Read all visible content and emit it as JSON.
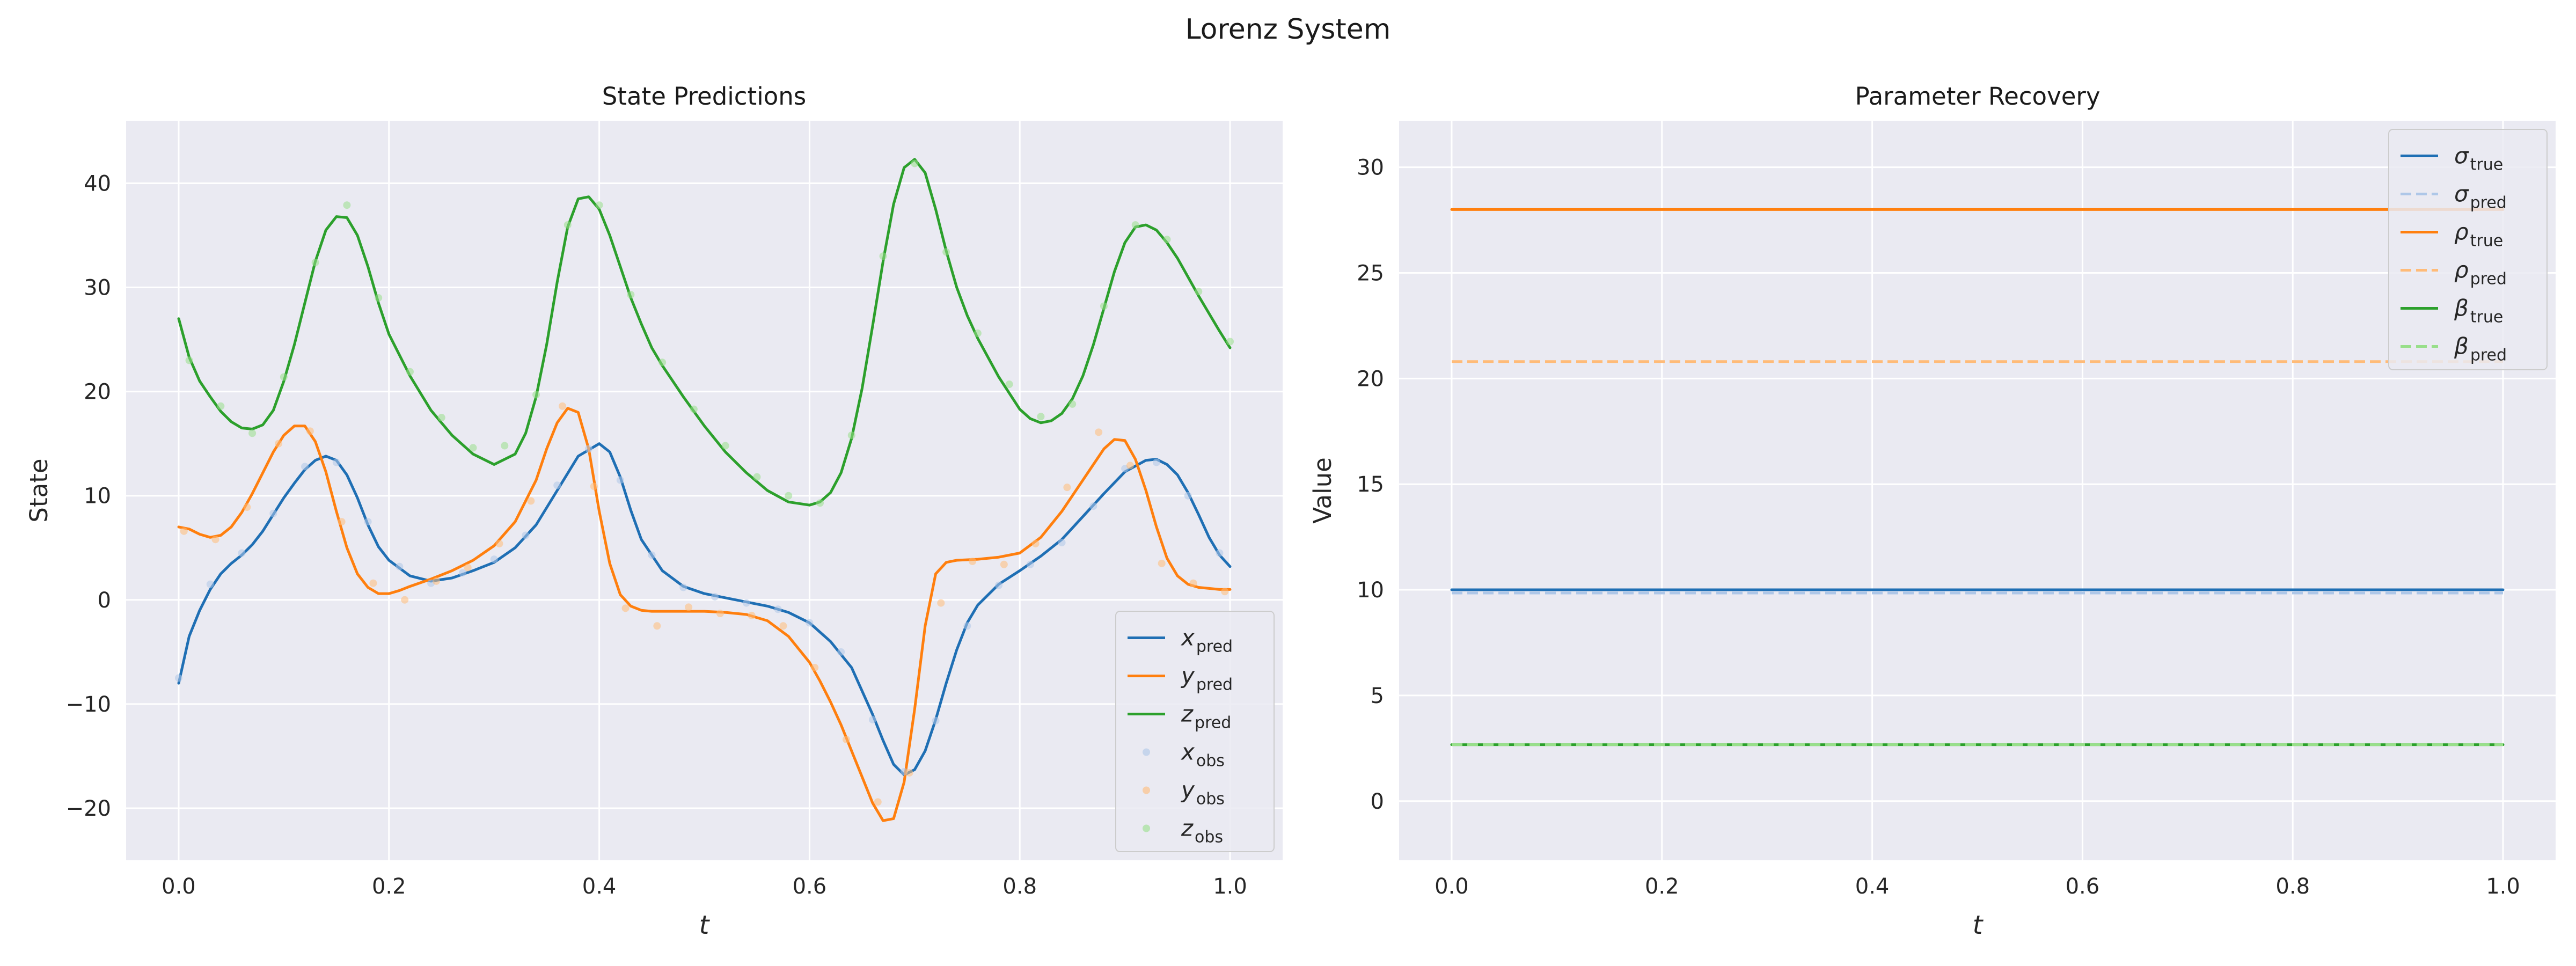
{
  "figure_title": "Lorenz System",
  "chart_data": [
    {
      "type": "line",
      "title": "State Predictions",
      "xlabel": "t",
      "ylabel": "State",
      "xlim": [
        -0.05,
        1.05
      ],
      "ylim": [
        -25,
        46
      ],
      "xticks": [
        0.0,
        0.2,
        0.4,
        0.6,
        0.8,
        1.0
      ],
      "yticks": [
        -20,
        -10,
        0,
        10,
        20,
        30,
        40
      ],
      "grid": true,
      "legend_position": "bottom-right",
      "series": [
        {
          "name": "x_pred",
          "label_main": "x",
          "label_sub": "pred",
          "color": "#1f6fb4",
          "style": "line",
          "x": [
            0.0,
            0.01,
            0.02,
            0.03,
            0.04,
            0.05,
            0.06,
            0.07,
            0.08,
            0.09,
            0.1,
            0.11,
            0.12,
            0.13,
            0.14,
            0.15,
            0.16,
            0.17,
            0.18,
            0.19,
            0.2,
            0.22,
            0.24,
            0.26,
            0.28,
            0.3,
            0.32,
            0.34,
            0.36,
            0.38,
            0.4,
            0.41,
            0.42,
            0.43,
            0.44,
            0.46,
            0.48,
            0.5,
            0.52,
            0.54,
            0.56,
            0.58,
            0.6,
            0.62,
            0.64,
            0.66,
            0.67,
            0.68,
            0.69,
            0.7,
            0.71,
            0.72,
            0.73,
            0.74,
            0.75,
            0.76,
            0.78,
            0.8,
            0.82,
            0.84,
            0.86,
            0.88,
            0.9,
            0.92,
            0.93,
            0.94,
            0.95,
            0.96,
            0.97,
            0.98,
            0.99,
            1.0
          ],
          "y": [
            -8,
            -3.5,
            -1,
            1,
            2.5,
            3.5,
            4.3,
            5.3,
            6.6,
            8.2,
            9.8,
            11.2,
            12.5,
            13.4,
            13.8,
            13.4,
            12,
            9.8,
            7.2,
            5.1,
            3.8,
            2.3,
            1.8,
            2.1,
            2.8,
            3.6,
            5,
            7.2,
            10.5,
            13.8,
            15,
            14.2,
            11.8,
            8.6,
            5.8,
            2.8,
            1.3,
            0.6,
            0.2,
            -0.2,
            -0.6,
            -1.2,
            -2.2,
            -4,
            -6.5,
            -11,
            -13.5,
            -15.8,
            -16.8,
            -16.3,
            -14.5,
            -11.5,
            -8,
            -4.8,
            -2.2,
            -0.5,
            1.5,
            2.8,
            4.2,
            5.8,
            8,
            10.2,
            12.3,
            13.4,
            13.5,
            13,
            12,
            10.3,
            8.2,
            6,
            4.3,
            3.2
          ]
        },
        {
          "name": "y_pred",
          "label_main": "y",
          "label_sub": "pred",
          "color": "#ff7f0e",
          "style": "line",
          "x": [
            0.0,
            0.01,
            0.02,
            0.03,
            0.04,
            0.05,
            0.06,
            0.07,
            0.08,
            0.09,
            0.1,
            0.11,
            0.12,
            0.13,
            0.14,
            0.15,
            0.16,
            0.17,
            0.18,
            0.19,
            0.2,
            0.21,
            0.22,
            0.24,
            0.26,
            0.28,
            0.3,
            0.32,
            0.34,
            0.35,
            0.36,
            0.37,
            0.38,
            0.39,
            0.4,
            0.41,
            0.42,
            0.43,
            0.44,
            0.45,
            0.46,
            0.48,
            0.5,
            0.52,
            0.54,
            0.56,
            0.58,
            0.6,
            0.61,
            0.62,
            0.63,
            0.64,
            0.65,
            0.66,
            0.67,
            0.68,
            0.69,
            0.7,
            0.71,
            0.72,
            0.73,
            0.74,
            0.76,
            0.78,
            0.8,
            0.82,
            0.84,
            0.86,
            0.88,
            0.89,
            0.9,
            0.91,
            0.92,
            0.93,
            0.94,
            0.95,
            0.96,
            0.97,
            0.98,
            0.99,
            1.0
          ],
          "y": [
            7,
            6.8,
            6.3,
            6,
            6.2,
            7,
            8.4,
            10.2,
            12.2,
            14.2,
            15.8,
            16.7,
            16.7,
            15.2,
            12.3,
            8.5,
            5,
            2.5,
            1.2,
            0.6,
            0.6,
            0.9,
            1.3,
            2,
            2.8,
            3.8,
            5.2,
            7.5,
            11.5,
            14.5,
            17,
            18.4,
            18,
            14.5,
            8.5,
            3.5,
            0.5,
            -0.6,
            -1,
            -1.1,
            -1.1,
            -1.1,
            -1.1,
            -1.2,
            -1.4,
            -2,
            -3.5,
            -6,
            -7.8,
            -9.8,
            -12,
            -14.5,
            -17,
            -19.5,
            -21.2,
            -21,
            -17.5,
            -10.5,
            -2.5,
            2.5,
            3.6,
            3.8,
            3.9,
            4.1,
            4.5,
            6,
            8.5,
            11.5,
            14.5,
            15.4,
            15.3,
            13.5,
            10.5,
            7,
            4,
            2.3,
            1.5,
            1.2,
            1.1,
            1,
            1
          ]
        },
        {
          "name": "z_pred",
          "label_main": "z",
          "label_sub": "pred",
          "color": "#2ca02c",
          "style": "line",
          "x": [
            0.0,
            0.01,
            0.02,
            0.03,
            0.04,
            0.05,
            0.06,
            0.07,
            0.08,
            0.09,
            0.1,
            0.11,
            0.12,
            0.13,
            0.14,
            0.15,
            0.16,
            0.17,
            0.18,
            0.19,
            0.2,
            0.22,
            0.24,
            0.26,
            0.28,
            0.3,
            0.32,
            0.33,
            0.34,
            0.35,
            0.36,
            0.37,
            0.38,
            0.39,
            0.4,
            0.41,
            0.42,
            0.43,
            0.44,
            0.45,
            0.46,
            0.48,
            0.5,
            0.52,
            0.54,
            0.56,
            0.58,
            0.6,
            0.61,
            0.62,
            0.63,
            0.64,
            0.65,
            0.66,
            0.67,
            0.68,
            0.69,
            0.7,
            0.71,
            0.72,
            0.73,
            0.74,
            0.75,
            0.76,
            0.78,
            0.8,
            0.81,
            0.82,
            0.83,
            0.84,
            0.85,
            0.86,
            0.87,
            0.88,
            0.89,
            0.9,
            0.91,
            0.92,
            0.93,
            0.94,
            0.95,
            0.96,
            0.97,
            0.98,
            0.99,
            1.0
          ],
          "y": [
            27,
            23.3,
            21,
            19.5,
            18.1,
            17.1,
            16.5,
            16.4,
            16.8,
            18.2,
            21,
            24.5,
            28.5,
            32.5,
            35.5,
            36.8,
            36.7,
            35,
            32,
            28.5,
            25.5,
            21.5,
            18.2,
            15.8,
            14,
            13,
            14,
            16,
            19.5,
            24.5,
            30.5,
            35.8,
            38.5,
            38.7,
            37.5,
            35,
            32,
            29,
            26.5,
            24.2,
            22.5,
            19.5,
            16.7,
            14.2,
            12.2,
            10.5,
            9.4,
            9.1,
            9.4,
            10.3,
            12.2,
            15.5,
            20.3,
            26.3,
            32.5,
            38,
            41.5,
            42.3,
            41,
            37.5,
            33.5,
            30,
            27.3,
            25.1,
            21.4,
            18.3,
            17.4,
            17,
            17.2,
            17.9,
            19.3,
            21.5,
            24.5,
            28,
            31.5,
            34.3,
            35.8,
            36,
            35.5,
            34.3,
            32.8,
            31,
            29.2,
            27.5,
            25.8,
            24.2
          ]
        },
        {
          "name": "x_obs",
          "label_main": "x",
          "label_sub": "obs",
          "color": "#aec7e8",
          "style": "scatter",
          "x": [
            0.0,
            0.03,
            0.06,
            0.09,
            0.12,
            0.15,
            0.18,
            0.21,
            0.24,
            0.27,
            0.3,
            0.33,
            0.36,
            0.39,
            0.42,
            0.45,
            0.48,
            0.51,
            0.54,
            0.57,
            0.6,
            0.63,
            0.66,
            0.69,
            0.72,
            0.75,
            0.78,
            0.81,
            0.84,
            0.87,
            0.9,
            0.93,
            0.96,
            0.99
          ],
          "y": [
            -7.5,
            1.5,
            4.5,
            8.3,
            12.8,
            13.2,
            7.5,
            3.2,
            1.6,
            2.6,
            3.9,
            6.2,
            11,
            14.5,
            11.5,
            4.3,
            1.2,
            0.3,
            -0.3,
            -0.9,
            -2.2,
            -5,
            -11.5,
            -16.5,
            -11.6,
            -2.5,
            1.4,
            3.4,
            5.5,
            9,
            12.6,
            13.2,
            10,
            4.5
          ]
        },
        {
          "name": "y_obs",
          "label_main": "y",
          "label_sub": "obs",
          "color": "#ffbb78",
          "style": "scatter",
          "x": [
            0.005,
            0.035,
            0.065,
            0.095,
            0.125,
            0.155,
            0.185,
            0.215,
            0.245,
            0.275,
            0.305,
            0.335,
            0.365,
            0.395,
            0.425,
            0.455,
            0.485,
            0.515,
            0.545,
            0.575,
            0.605,
            0.635,
            0.665,
            0.695,
            0.725,
            0.755,
            0.785,
            0.815,
            0.845,
            0.875,
            0.905,
            0.935,
            0.965,
            0.995
          ],
          "y": [
            6.6,
            5.8,
            8.9,
            15,
            16.2,
            7.5,
            1.6,
            0,
            1.8,
            3.1,
            5.4,
            9.5,
            18.6,
            10.9,
            -0.8,
            -2.5,
            -0.7,
            -1.3,
            -1.5,
            -2.5,
            -6.5,
            -13.4,
            -19.4,
            -16.6,
            -0.3,
            3.7,
            3.4,
            5.4,
            10.8,
            16.1,
            12.9,
            3.5,
            1.6,
            0.8
          ]
        },
        {
          "name": "z_obs",
          "label_main": "z",
          "label_sub": "obs",
          "color": "#98df8a",
          "style": "scatter",
          "x": [
            0.01,
            0.04,
            0.07,
            0.1,
            0.13,
            0.16,
            0.19,
            0.22,
            0.25,
            0.28,
            0.31,
            0.34,
            0.37,
            0.4,
            0.43,
            0.46,
            0.49,
            0.52,
            0.55,
            0.58,
            0.61,
            0.64,
            0.67,
            0.7,
            0.73,
            0.76,
            0.79,
            0.82,
            0.85,
            0.88,
            0.91,
            0.94,
            0.97,
            1.0
          ],
          "y": [
            23,
            18.6,
            16,
            21.4,
            32.4,
            37.9,
            29,
            21.9,
            17.5,
            14.6,
            14.8,
            19.7,
            36,
            37.9,
            29.3,
            22.8,
            18.3,
            14.8,
            11.8,
            10,
            9.3,
            15.8,
            33,
            41.9,
            33.4,
            25.6,
            20.7,
            17.6,
            18.8,
            28.2,
            36,
            34.6,
            29.6,
            24.8
          ]
        }
      ]
    },
    {
      "type": "line",
      "title": "Parameter Recovery",
      "xlabel": "t",
      "ylabel": "Value",
      "xlim": [
        -0.05,
        1.05
      ],
      "ylim": [
        -2.8,
        32.2
      ],
      "xticks": [
        0.0,
        0.2,
        0.4,
        0.6,
        0.8,
        1.0
      ],
      "yticks": [
        0,
        5,
        10,
        15,
        20,
        25,
        30
      ],
      "grid": true,
      "legend_position": "top-right",
      "series": [
        {
          "name": "sigma_true",
          "label_main": "σ",
          "label_sub": "true",
          "color": "#1f6fb4",
          "dashed": false,
          "x": [
            0.0,
            1.0
          ],
          "y": [
            10,
            10
          ]
        },
        {
          "name": "sigma_pred",
          "label_main": "σ",
          "label_sub": "pred",
          "color": "#aec7e8",
          "dashed": true,
          "x": [
            0.0,
            1.0
          ],
          "y": [
            9.85,
            9.85
          ]
        },
        {
          "name": "rho_true",
          "label_main": "ρ",
          "label_sub": "true",
          "color": "#ff7f0e",
          "dashed": false,
          "x": [
            0.0,
            1.0
          ],
          "y": [
            28,
            28
          ]
        },
        {
          "name": "rho_pred",
          "label_main": "ρ",
          "label_sub": "pred",
          "color": "#ffbb78",
          "dashed": true,
          "x": [
            0.0,
            1.0
          ],
          "y": [
            20.8,
            20.8
          ]
        },
        {
          "name": "beta_true",
          "label_main": "β",
          "label_sub": "true",
          "color": "#2ca02c",
          "dashed": false,
          "x": [
            0.0,
            1.0
          ],
          "y": [
            2.67,
            2.67
          ]
        },
        {
          "name": "beta_pred",
          "label_main": "β",
          "label_sub": "pred",
          "color": "#98df8a",
          "dashed": true,
          "x": [
            0.0,
            1.0
          ],
          "y": [
            2.67,
            2.67
          ]
        }
      ]
    }
  ]
}
